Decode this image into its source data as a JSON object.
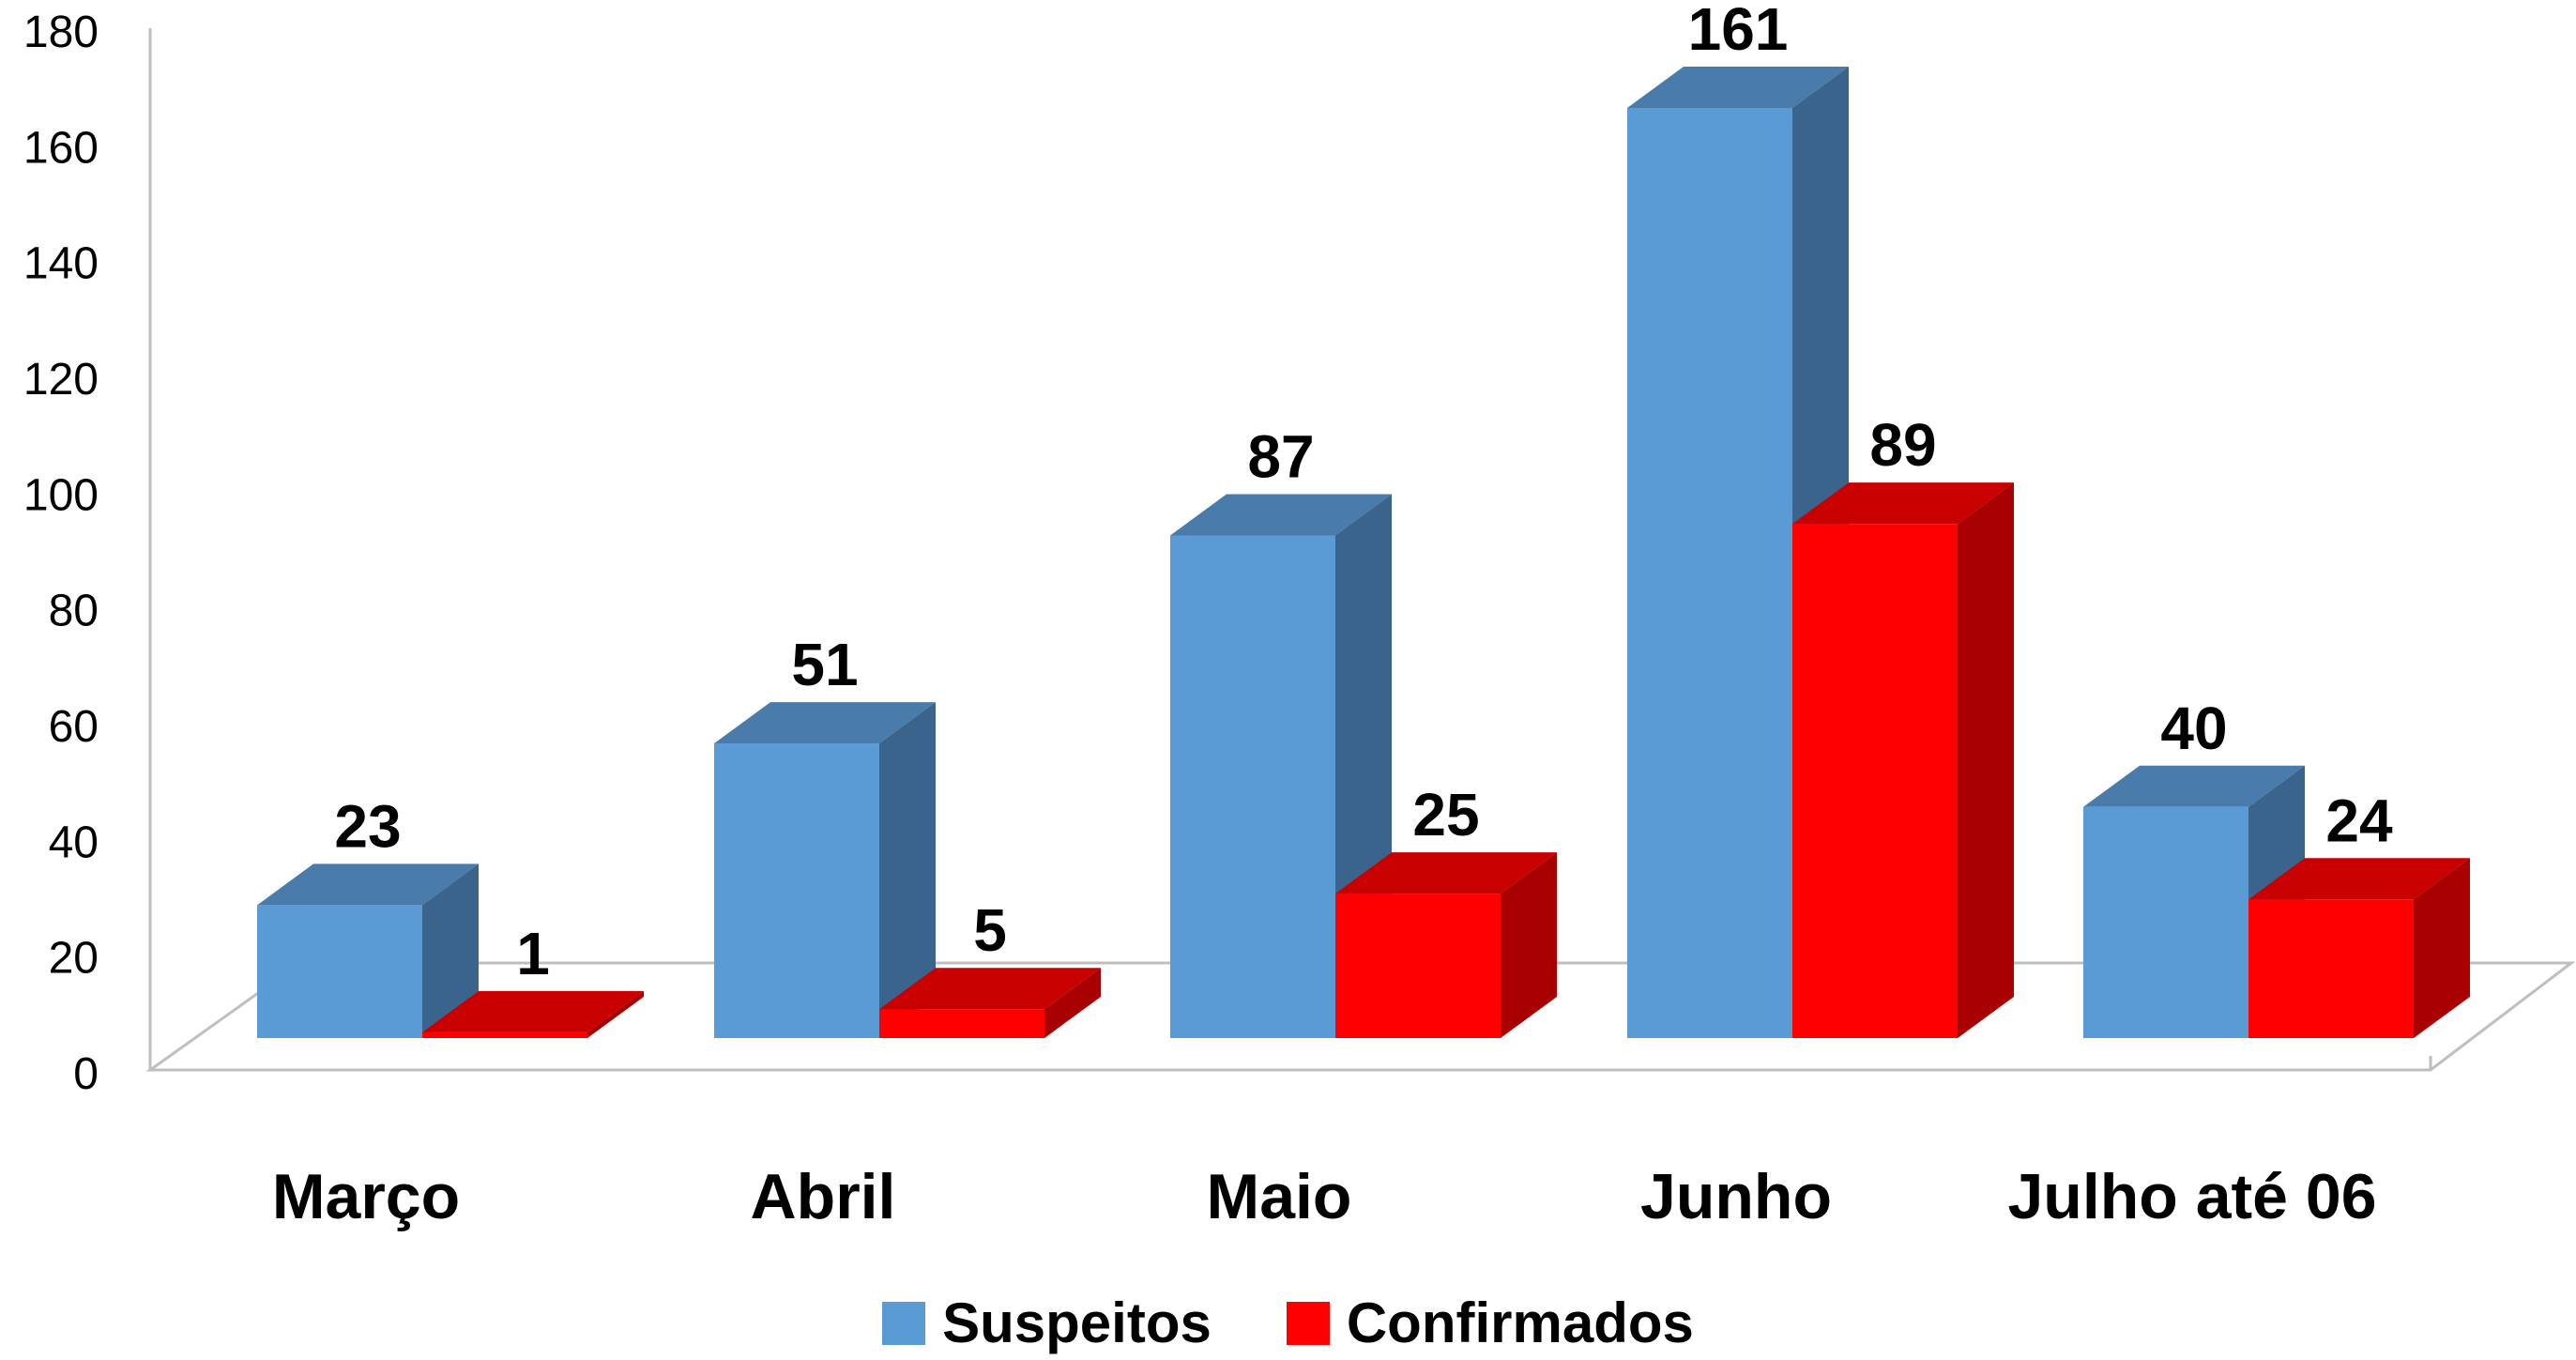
{
  "chart_data": {
    "type": "bar",
    "style": "3d-clustered-column",
    "categories": [
      "Março",
      "Abril",
      "Maio",
      "Junho",
      "Julho até 06"
    ],
    "series": [
      {
        "name": "Suspeitos",
        "values": [
          23,
          51,
          87,
          161,
          40
        ],
        "color": "#5B9BD5",
        "side_color": "#3A648C",
        "top_color": "#4A7CAB"
      },
      {
        "name": "Confirmados",
        "values": [
          1,
          5,
          25,
          89,
          24
        ],
        "color": "#FF0000",
        "side_color": "#A80000",
        "top_color": "#C80000"
      }
    ],
    "y_ticks": [
      "0",
      "20",
      "40",
      "60",
      "80",
      "100",
      "120",
      "140",
      "160",
      "180"
    ],
    "ylim": [
      0,
      180
    ],
    "grid": false,
    "data_labels": true,
    "legend_position": "bottom"
  }
}
